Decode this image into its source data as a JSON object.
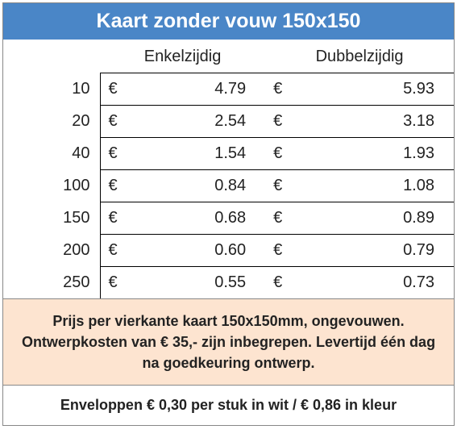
{
  "title": "Kaart zonder vouw 150x150",
  "columns": {
    "single": "Enkelzijdig",
    "double": "Dubbelzijdig"
  },
  "currency": "€",
  "rows": [
    {
      "qty": "10",
      "single": "4.79",
      "double": "5.93"
    },
    {
      "qty": "20",
      "single": "2.54",
      "double": "3.18"
    },
    {
      "qty": "40",
      "single": "1.54",
      "double": "1.93"
    },
    {
      "qty": "100",
      "single": "0.84",
      "double": "1.08"
    },
    {
      "qty": "150",
      "single": "0.68",
      "double": "0.89"
    },
    {
      "qty": "200",
      "single": "0.60",
      "double": "0.79"
    },
    {
      "qty": "250",
      "single": "0.55",
      "double": "0.73"
    }
  ],
  "description": "Prijs per vierkante kaart 150x150mm, ongevouwen. Ontwerpkosten van € 35,- zijn inbegrepen. Levertijd één dag na goedkeuring ontwerp.",
  "envelope_note": "Enveloppen € 0,30 per stuk in wit / € 0,86 in kleur",
  "style": {
    "title_bg": "#4a86c7",
    "title_color": "#ffffff",
    "desc_bg": "#fde4d0",
    "border_color": "#888888",
    "cell_border": "#000000",
    "text_color": "#222222",
    "title_fontsize": 25,
    "body_fontsize": 20,
    "note_fontsize": 18
  }
}
